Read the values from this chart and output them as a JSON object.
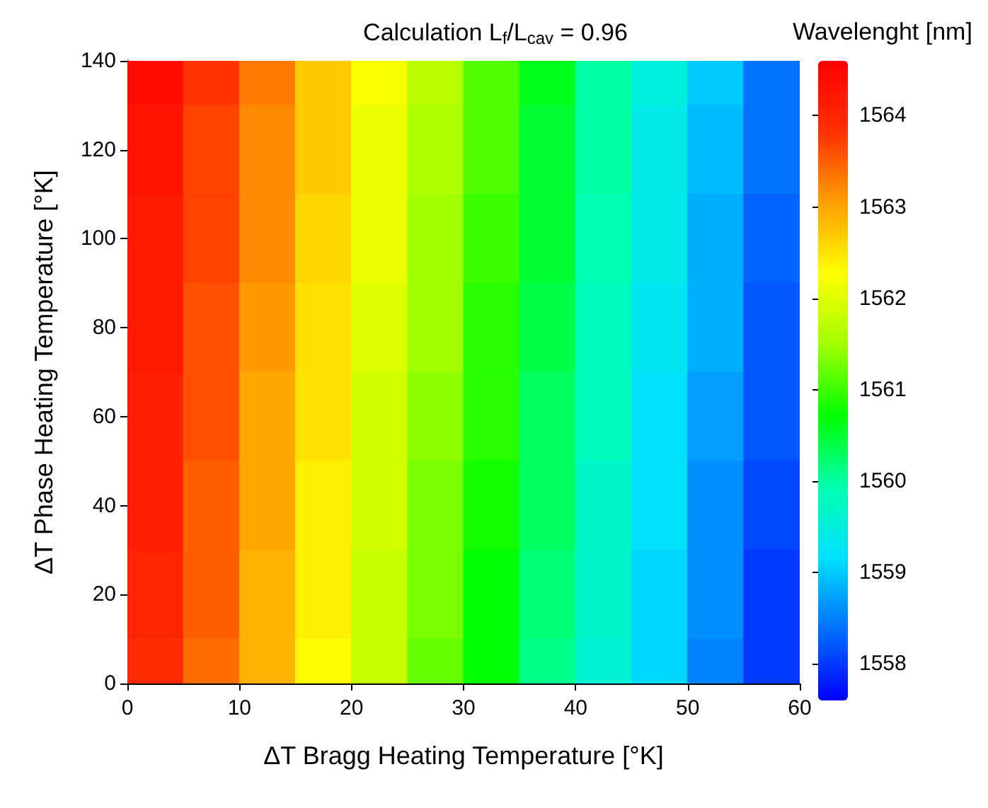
{
  "chart_data": {
    "type": "heatmap",
    "title": "Calculation L$_{f}$/L$_{cav}$ = 0.96",
    "xlabel": "ΔT Bragg Heating Temperature [°K]",
    "ylabel": "ΔT Phase Heating Temperature [°K]",
    "clabel": "Wavelenght [nm]",
    "x": [
      2.5,
      7.5,
      12.5,
      17.5,
      22.5,
      27.5,
      32.5,
      37.5,
      42.5,
      47.5,
      52.5,
      57.5
    ],
    "y_categories": [
      "140",
      "120",
      "100",
      "80",
      "60",
      "40",
      "20",
      "0"
    ],
    "cells": [
      [
        1564.4,
        1563.8,
        1563.3,
        1562.7,
        1562.2,
        1561.7,
        1561.1,
        1560.6,
        1560.0,
        1559.5,
        1559.0,
        1558.4
      ],
      [
        1564.3,
        1563.7,
        1563.2,
        1562.7,
        1562.1,
        1561.6,
        1561.1,
        1560.5,
        1560.0,
        1559.4,
        1558.9,
        1558.4
      ],
      [
        1564.2,
        1563.7,
        1563.2,
        1562.6,
        1562.1,
        1561.5,
        1561.0,
        1560.5,
        1559.9,
        1559.4,
        1558.8,
        1558.3
      ],
      [
        1564.2,
        1563.6,
        1563.1,
        1562.5,
        1562.0,
        1561.5,
        1560.9,
        1560.4,
        1559.8,
        1559.3,
        1558.8,
        1558.2
      ],
      [
        1564.1,
        1563.6,
        1563.0,
        1562.5,
        1561.9,
        1561.4,
        1560.9,
        1560.3,
        1559.8,
        1559.2,
        1558.7,
        1558.2
      ],
      [
        1564.1,
        1563.5,
        1563.0,
        1562.4,
        1561.9,
        1561.3,
        1560.8,
        1560.3,
        1559.7,
        1559.2,
        1558.6,
        1558.1
      ],
      [
        1564.0,
        1563.5,
        1562.9,
        1562.4,
        1561.8,
        1561.3,
        1560.7,
        1560.2,
        1559.7,
        1559.1,
        1558.6,
        1558.0
      ],
      [
        1563.9,
        1563.4,
        1562.9,
        1562.3,
        1561.8,
        1561.2,
        1560.7,
        1560.1,
        1559.6,
        1559.1,
        1558.5,
        1558.0
      ]
    ],
    "xlim": [
      0,
      60
    ],
    "xticks": [
      0,
      10,
      20,
      30,
      40,
      50,
      60
    ],
    "clim": [
      1557.6,
      1564.6
    ],
    "cticks": [
      1558,
      1559,
      1560,
      1561,
      1562,
      1563,
      1564
    ]
  }
}
